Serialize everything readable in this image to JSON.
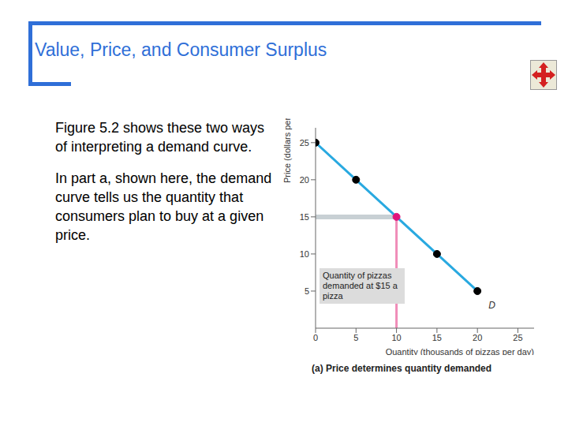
{
  "slide": {
    "title": "Value, Price, and Consumer Surplus",
    "paragraphs": [
      "Figure 5.2 shows these two ways of interpreting a demand curve.",
      "In part a, shown here, the demand curve tells us the quantity that consumers plan to buy at a given price."
    ]
  },
  "chart_data": {
    "type": "line",
    "caption": "(a) Price determines quantity demanded",
    "x_label": "Quantity (thousands of pizzas per day)",
    "y_label": "Price (dollars per pizza)",
    "x": [
      0,
      5,
      10,
      15,
      20
    ],
    "series": [
      {
        "name": "D",
        "color": "#29a9e0",
        "marker": "circle",
        "colors": [
          "#000000",
          "#000000",
          "#e0147a",
          "#000000",
          "#000000"
        ],
        "values": [
          25,
          20,
          15,
          10,
          5
        ]
      }
    ],
    "xlim": [
      0,
      27
    ],
    "xticks": [
      0,
      5,
      10,
      15,
      20,
      25
    ],
    "ylim": [
      0,
      27
    ],
    "yticks": [
      5,
      10,
      15,
      20,
      25
    ],
    "annotation": {
      "text": "Quantity of pizzas demanded at $15 a pizza",
      "x": 10,
      "y": 15
    }
  }
}
